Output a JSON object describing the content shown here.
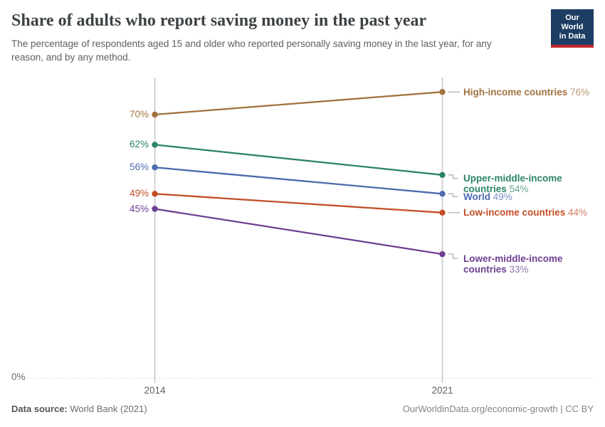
{
  "header": {
    "title": "Share of adults who report saving money in the past year",
    "subtitle": "The percentage of respondents aged 15 and older who reported personally saving money in the last year, for any reason, and by any method.",
    "logo": {
      "line1": "Our World",
      "line2": "in Data",
      "bg_color": "#1d3d63",
      "bar_color": "#c0272d"
    }
  },
  "chart_data": {
    "type": "line",
    "variant": "slope",
    "title": "Share of adults who report saving money in the past year",
    "x": [
      2014,
      2021
    ],
    "series": [
      {
        "name": "High-income countries",
        "values": [
          70,
          76
        ],
        "color": "#A2733F"
      },
      {
        "name": "Upper-middle-income countries",
        "values": [
          62,
          54
        ],
        "color": "#2C8465"
      },
      {
        "name": "World",
        "values": [
          56,
          49
        ],
        "color": "#4C6BAE"
      },
      {
        "name": "Low-income countries",
        "values": [
          49,
          44
        ],
        "color": "#C24E27"
      },
      {
        "name": "Lower-middle-income countries",
        "values": [
          45,
          33
        ],
        "color": "#6D3E91"
      }
    ],
    "value_suffix": "%",
    "y_axis": {
      "min": 0,
      "min_label": "0%"
    },
    "ylim": [
      0,
      80
    ],
    "grid": "baseline-dotted",
    "legend_position": "right-inline"
  },
  "footer": {
    "source_label": "Data source:",
    "source_value": "World Bank (2021)",
    "right_text": "OurWorldinData.org/economic-growth | CC BY"
  }
}
